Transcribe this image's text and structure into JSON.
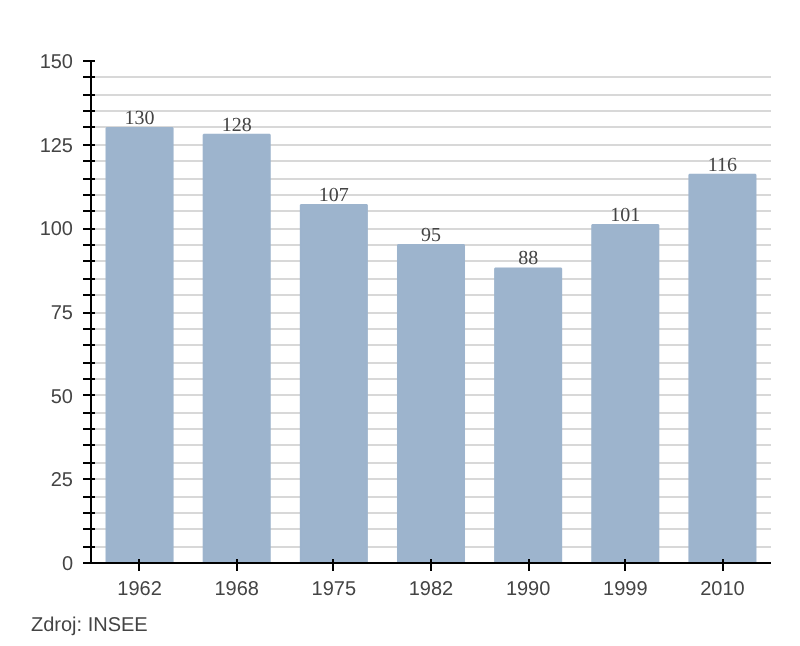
{
  "chart_data": {
    "type": "bar",
    "categories": [
      "1962",
      "1968",
      "1975",
      "1982",
      "1990",
      "1999",
      "2010"
    ],
    "values": [
      130,
      128,
      107,
      95,
      88,
      101,
      116
    ],
    "color": "#9db4cd",
    "ylim": [
      0,
      150
    ],
    "yticks": [
      0,
      {
        "value": 5,
        "label": null
      },
      {
        "value": 10,
        "label": null
      },
      {
        "value": 15,
        "label": null
      },
      {
        "value": 20,
        "label": null
      },
      25,
      {
        "value": 30,
        "label": null
      },
      {
        "value": 35,
        "label": null
      },
      {
        "value": 40,
        "label": null
      },
      {
        "value": 45,
        "label": null
      },
      50,
      {
        "value": 55,
        "label": null
      },
      {
        "value": 60,
        "label": null
      },
      {
        "value": 65,
        "label": null
      },
      {
        "value": 70,
        "label": null
      },
      75,
      {
        "value": 80,
        "label": null
      },
      {
        "value": 85,
        "label": null
      },
      {
        "value": 90,
        "label": null
      },
      {
        "value": 95,
        "label": null
      },
      100,
      {
        "value": 105,
        "label": null
      },
      {
        "value": 110,
        "label": null
      },
      {
        "value": 115,
        "label": null
      },
      {
        "value": 120,
        "label": null
      },
      125,
      {
        "value": 130,
        "label": null
      },
      {
        "value": 135,
        "label": null
      },
      {
        "value": 140,
        "label": null
      },
      {
        "value": 145,
        "label": null
      },
      150
    ],
    "grid": "y",
    "data_labels": true,
    "annotations": [
      "Zdroj: INSEE"
    ]
  }
}
